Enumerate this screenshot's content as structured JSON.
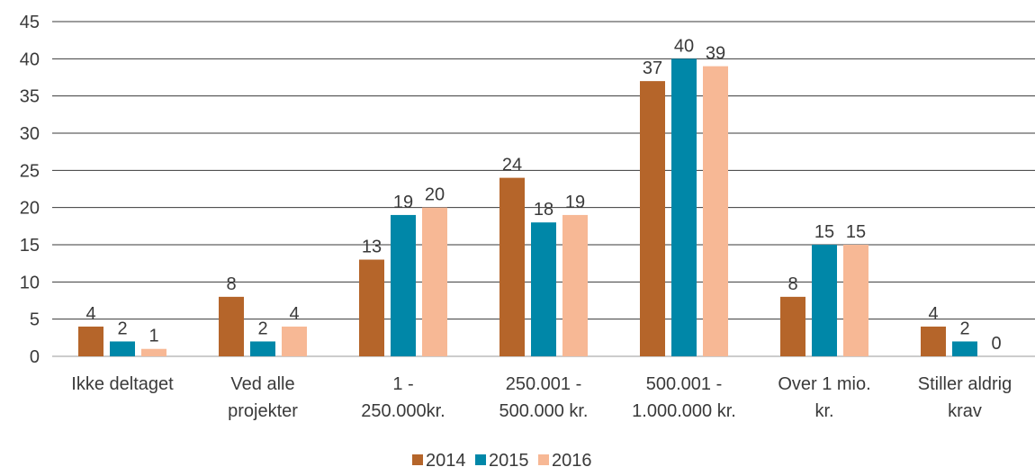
{
  "chart_data": {
    "type": "bar",
    "categories": [
      [
        "Ikke deltaget"
      ],
      [
        "Ved alle",
        "projekter"
      ],
      [
        "1 -",
        "250.000kr."
      ],
      [
        "250.001 -",
        "500.000 kr."
      ],
      [
        "500.001 -",
        "1.000.000 kr."
      ],
      [
        "Over 1 mio.",
        "kr."
      ],
      [
        "Stiller aldrig",
        "krav"
      ]
    ],
    "series": [
      {
        "name": "2014",
        "color": "#B5652A",
        "values": [
          4,
          8,
          13,
          24,
          37,
          8,
          4
        ]
      },
      {
        "name": "2015",
        "color": "#0087A8",
        "values": [
          2,
          2,
          19,
          18,
          40,
          15,
          2
        ]
      },
      {
        "name": "2016",
        "color": "#F7B895",
        "values": [
          1,
          4,
          20,
          19,
          39,
          15,
          0
        ]
      }
    ],
    "ylim": [
      0,
      45
    ],
    "yticks": [
      0,
      5,
      10,
      15,
      20,
      25,
      30,
      35,
      40,
      45
    ],
    "grid": true,
    "legend_position": "bottom"
  }
}
